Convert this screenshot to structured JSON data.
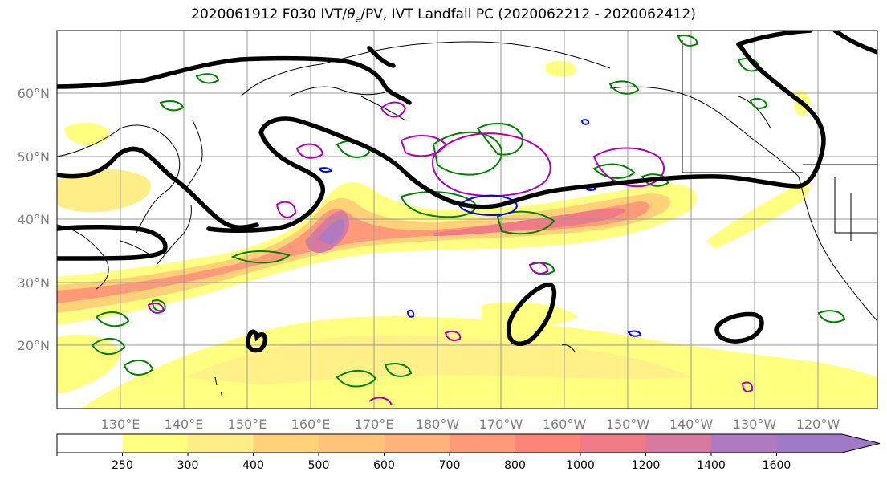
{
  "title_prefix": "2020061912 F030 IVT/",
  "title_theta": "θ",
  "title_sub": "e",
  "title_suffix": "/PV, IVT Landfall PC (2020062212 - 2020062412)",
  "lon_ticks": [
    "130°E",
    "140°E",
    "150°E",
    "160°E",
    "170°E",
    "180°W",
    "170°W",
    "160°W",
    "150°W",
    "140°W",
    "130°W",
    "120°W"
  ],
  "lat_ticks": [
    "60°N",
    "50°N",
    "40°N",
    "30°N",
    "20°N"
  ],
  "colorbar": {
    "levels": [
      "250",
      "300",
      "400",
      "500",
      "600",
      "700",
      "800",
      "1000",
      "1200",
      "1400",
      "1600"
    ],
    "colors": [
      "#ffffff",
      "#ffff80",
      "#ffee88",
      "#ffd27a",
      "#ffc47a",
      "#ffb27a",
      "#ff9a78",
      "#ff8478",
      "#f07a85",
      "#d87aa0",
      "#b07ac0",
      "#a07ac8"
    ]
  },
  "colors": {
    "pv_contour": "#008000",
    "theta_contour": "#b000b0",
    "cold_contour": "#0000ff",
    "ivt_landfall_contour": "#000000",
    "coastline": "#000000",
    "grid": "#999999"
  }
}
